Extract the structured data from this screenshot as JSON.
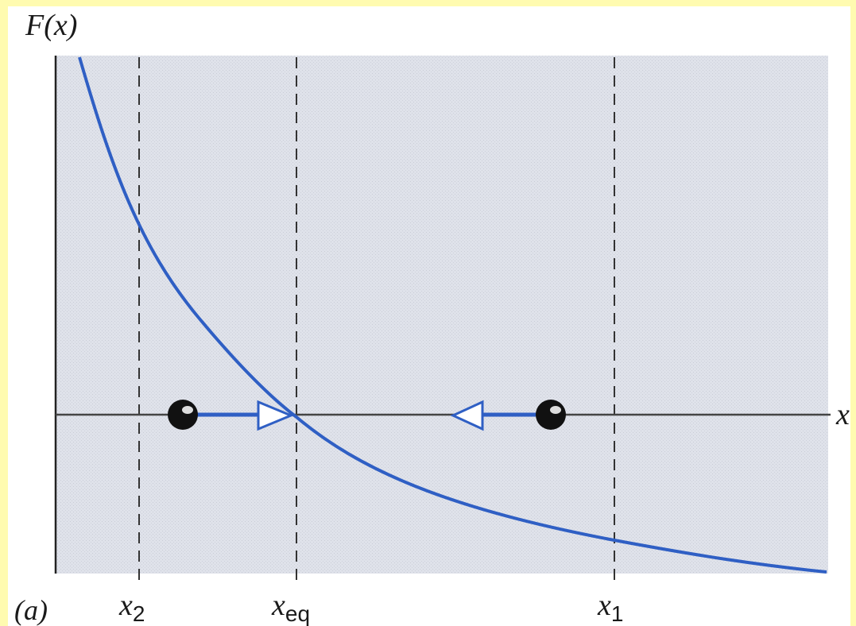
{
  "axes": {
    "y_label": "F(x)",
    "x_label": "x"
  },
  "markers": [
    {
      "symbol": "x",
      "subscript": "2"
    },
    {
      "symbol": "x",
      "subscript": "eq"
    },
    {
      "symbol": "x",
      "subscript": "1"
    }
  ],
  "panel_label": "(a)"
}
